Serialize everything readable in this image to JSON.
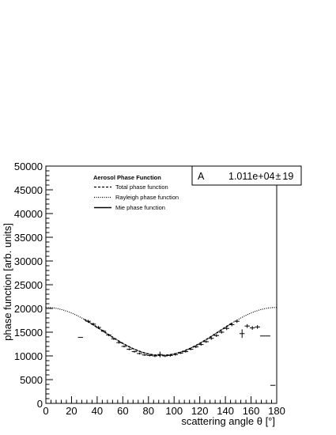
{
  "chart_data": {
    "type": "scatter",
    "title": "",
    "xlabel": "scattering angle θ [°]",
    "ylabel": "phase function [arb. units]",
    "xlim": [
      0,
      180
    ],
    "ylim": [
      0,
      50000
    ],
    "x_ticks": [
      "0",
      "20",
      "40",
      "60",
      "80",
      "100",
      "120",
      "140",
      "160",
      "180"
    ],
    "y_ticks": [
      "0",
      "5000",
      "10000",
      "15000",
      "20000",
      "25000",
      "30000",
      "35000",
      "40000",
      "45000",
      "50000"
    ],
    "grid": false,
    "legend": {
      "title": "Aerosol Phase Function",
      "placement": "top-left",
      "entries": [
        {
          "label": "Total phase function",
          "style": "dashed"
        },
        {
          "label": "Rayleigh phase function",
          "style": "dotted"
        },
        {
          "label": "Mie phase function",
          "style": "solid"
        }
      ]
    },
    "stat_box": {
      "param": "A",
      "value": "1.011e+04",
      "pm": "±",
      "error": "19"
    },
    "curves": [
      {
        "name": "Rayleigh phase function",
        "style": "dotted",
        "formula": "A*(1+cos^2(theta))",
        "A": 10110,
        "x_range": [
          0,
          180
        ]
      },
      {
        "name": "Total phase function",
        "style": "dashed",
        "formula": "A*(1+cos^2(theta))",
        "A": 10110,
        "x_range": [
          30,
          145
        ]
      }
    ],
    "data_points": {
      "x": [
        27,
        33,
        37,
        41,
        45,
        49,
        53,
        57,
        61,
        65,
        69,
        73,
        77,
        81,
        85,
        89,
        93,
        97,
        101,
        105,
        109,
        113,
        117,
        121,
        125,
        129,
        133,
        137,
        141,
        145,
        149,
        153,
        157,
        161,
        165,
        169,
        173,
        177
      ],
      "y": [
        13900,
        17300,
        16700,
        16000,
        15200,
        14400,
        13600,
        12800,
        12000,
        11400,
        10900,
        10500,
        10200,
        10100,
        10000,
        10300,
        10000,
        10100,
        10300,
        10600,
        10900,
        11400,
        11900,
        12400,
        13000,
        13700,
        14300,
        15000,
        15800,
        16600,
        17300,
        14700,
        16300,
        15900,
        16100,
        14200,
        14200,
        3800
      ],
      "xerr": [
        2,
        2,
        2,
        2,
        2,
        2,
        2,
        2,
        2,
        2,
        2,
        2,
        2,
        2,
        2,
        2,
        2,
        2,
        2,
        2,
        2,
        2,
        2,
        2,
        2,
        2,
        2,
        2,
        2,
        2,
        2,
        2,
        2,
        2,
        2,
        2,
        2,
        2
      ],
      "yerr": [
        0,
        300,
        300,
        300,
        250,
        250,
        250,
        200,
        200,
        200,
        200,
        200,
        200,
        200,
        250,
        600,
        250,
        250,
        250,
        200,
        200,
        200,
        250,
        250,
        250,
        300,
        300,
        300,
        350,
        350,
        350,
        900,
        400,
        400,
        400,
        0,
        0,
        0
      ]
    }
  }
}
